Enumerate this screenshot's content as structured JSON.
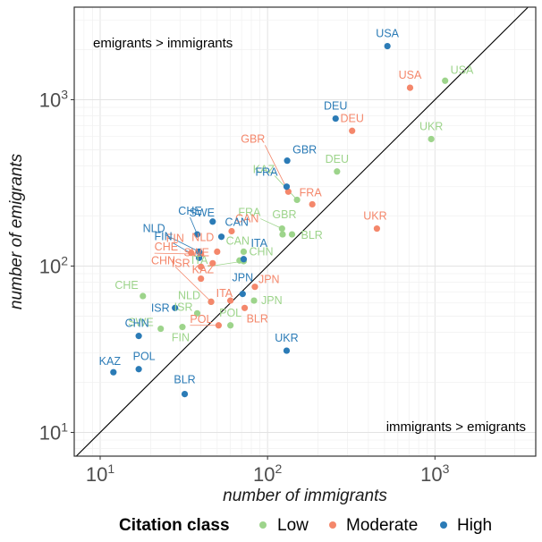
{
  "chart_data": {
    "type": "scatter",
    "xlabel": "number of immigrants",
    "ylabel": "number of emigrants",
    "xscale": "log",
    "yscale": "log",
    "xlim": [
      7,
      4000
    ],
    "ylim": [
      7.2,
      3600
    ],
    "x_ticks": [
      {
        "base": "10",
        "exp": "1",
        "value": 10
      },
      {
        "base": "10",
        "exp": "2",
        "value": 100
      },
      {
        "base": "10",
        "exp": "3",
        "value": 1000
      }
    ],
    "y_ticks": [
      {
        "base": "10",
        "exp": "1",
        "value": 10
      },
      {
        "base": "10",
        "exp": "2",
        "value": 100
      },
      {
        "base": "10",
        "exp": "3",
        "value": 1000
      }
    ],
    "grid": true,
    "diagonal": "y = x",
    "annotations": {
      "upper_left": "emigrants > immigrants",
      "lower_right": "immigrants > emigrants"
    },
    "legend": {
      "title": "Citation class",
      "position": "bottom",
      "items": [
        "Low",
        "Moderate",
        "High"
      ]
    },
    "colors": {
      "Low": "#9dd48b",
      "Moderate": "#f4876b",
      "High": "#2b7bb6"
    },
    "series": [
      {
        "name": "Low",
        "points": [
          {
            "label": "USA",
            "x": 1150,
            "y": 1300
          },
          {
            "label": "UKR",
            "x": 950,
            "y": 580
          },
          {
            "label": "DEU",
            "x": 260,
            "y": 370
          },
          {
            "label": "KAZ",
            "x": 150,
            "y": 250
          },
          {
            "label": "FRA",
            "x": 122,
            "y": 168
          },
          {
            "label": "GBR",
            "x": 123,
            "y": 155
          },
          {
            "label": "BLR",
            "x": 140,
            "y": 155
          },
          {
            "label": "CAN",
            "x": 68,
            "y": 108
          },
          {
            "label": "ITA",
            "x": 72,
            "y": 107
          },
          {
            "label": "CHN",
            "x": 72,
            "y": 122
          },
          {
            "label": "CHE",
            "x": 18,
            "y": 66
          },
          {
            "label": "NLD",
            "x": 46,
            "y": 61
          },
          {
            "label": "ISR",
            "x": 38,
            "y": 52
          },
          {
            "label": "POL",
            "x": 60,
            "y": 44
          },
          {
            "label": "SWE",
            "x": 23,
            "y": 42
          },
          {
            "label": "FIN",
            "x": 31,
            "y": 43
          },
          {
            "label": "JPN",
            "x": 83,
            "y": 62
          }
        ]
      },
      {
        "name": "Moderate",
        "points": [
          {
            "label": "USA",
            "x": 710,
            "y": 1180
          },
          {
            "label": "DEU",
            "x": 320,
            "y": 650
          },
          {
            "label": "UKR",
            "x": 450,
            "y": 168
          },
          {
            "label": "GBR",
            "x": 133,
            "y": 280
          },
          {
            "label": "FRA",
            "x": 185,
            "y": 235
          },
          {
            "label": "CAN",
            "x": 61,
            "y": 162
          },
          {
            "label": "NLD",
            "x": 50,
            "y": 122
          },
          {
            "label": "FIN",
            "x": 35,
            "y": 120
          },
          {
            "label": "SWE",
            "x": 47,
            "y": 104
          },
          {
            "label": "CHE",
            "x": 40,
            "y": 118
          },
          {
            "label": "ISR",
            "x": 40,
            "y": 99
          },
          {
            "label": "KAZ",
            "x": 40,
            "y": 84
          },
          {
            "label": "CHN",
            "x": 46,
            "y": 61
          },
          {
            "label": "ITA",
            "x": 60,
            "y": 62
          },
          {
            "label": "JPN",
            "x": 84,
            "y": 75
          },
          {
            "label": "BLR",
            "x": 73,
            "y": 56
          },
          {
            "label": "POL",
            "x": 51,
            "y": 44
          }
        ]
      },
      {
        "name": "High",
        "points": [
          {
            "label": "USA",
            "x": 520,
            "y": 2100
          },
          {
            "label": "DEU",
            "x": 255,
            "y": 770
          },
          {
            "label": "GBR",
            "x": 131,
            "y": 430
          },
          {
            "label": "FRA",
            "x": 130,
            "y": 300
          },
          {
            "label": "SWE",
            "x": 47,
            "y": 185
          },
          {
            "label": "CAN",
            "x": 53,
            "y": 150
          },
          {
            "label": "CHE",
            "x": 38,
            "y": 155
          },
          {
            "label": "NLD",
            "x": 39,
            "y": 122
          },
          {
            "label": "FIN",
            "x": 39,
            "y": 112
          },
          {
            "label": "ITA",
            "x": 72,
            "y": 110
          },
          {
            "label": "JPN",
            "x": 71,
            "y": 68
          },
          {
            "label": "ISR",
            "x": 28,
            "y": 56
          },
          {
            "label": "CHN",
            "x": 17,
            "y": 38
          },
          {
            "label": "UKR",
            "x": 130,
            "y": 31
          },
          {
            "label": "KAZ",
            "x": 12,
            "y": 23
          },
          {
            "label": "POL",
            "x": 17,
            "y": 24
          },
          {
            "label": "BLR",
            "x": 32,
            "y": 17
          }
        ]
      }
    ]
  }
}
